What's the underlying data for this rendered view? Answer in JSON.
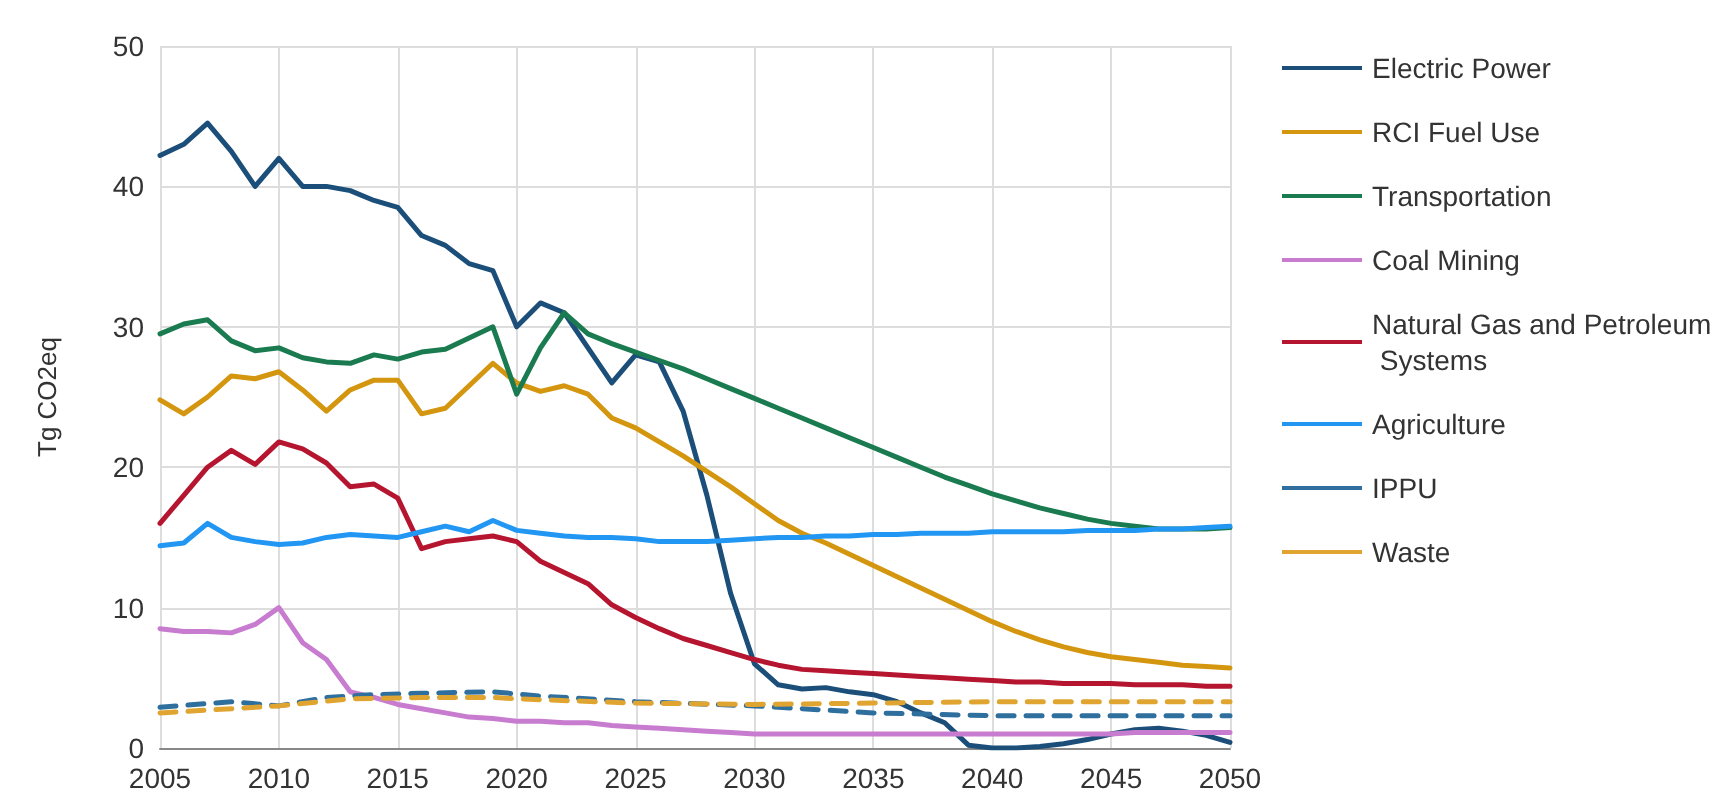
{
  "chart_data": {
    "type": "line",
    "ylabel": "Tg CO2eq",
    "xlim": [
      2005,
      2050
    ],
    "xticks": [
      2005,
      2010,
      2015,
      2020,
      2025,
      2030,
      2035,
      2040,
      2045,
      2050
    ],
    "ylim": [
      0,
      50
    ],
    "yticks": [
      0,
      10,
      20,
      30,
      40,
      50
    ],
    "grid": true,
    "legend": "right",
    "marker": "none",
    "x": [
      2005,
      2006,
      2007,
      2008,
      2009,
      2010,
      2011,
      2012,
      2013,
      2014,
      2015,
      2016,
      2017,
      2018,
      2019,
      2020,
      2021,
      2022,
      2023,
      2024,
      2025,
      2026,
      2027,
      2028,
      2029,
      2030,
      2031,
      2032,
      2033,
      2034,
      2035,
      2036,
      2037,
      2038,
      2039,
      2040,
      2041,
      2042,
      2043,
      2044,
      2045,
      2046,
      2047,
      2048,
      2049,
      2050
    ],
    "series": [
      {
        "name": "Electric Power",
        "color": "#1b4f7a",
        "line_style": "solid",
        "values": [
          42.2,
          43,
          44.5,
          42.5,
          40,
          42,
          40,
          40,
          39.7,
          39,
          38.5,
          36.5,
          35.8,
          34.5,
          34,
          30,
          31.7,
          31,
          28.5,
          26,
          28,
          27.5,
          24,
          18,
          11,
          6,
          4.5,
          4.2,
          4.3,
          4,
          3.8,
          3.3,
          2.5,
          1.8,
          0.2,
          0,
          0,
          0.1,
          0.3,
          0.6,
          1,
          1.3,
          1.4,
          1.2,
          0.9,
          0.4
        ]
      },
      {
        "name": "RCI Fuel Use",
        "color": "#d4960f",
        "line_style": "solid",
        "values": [
          24.8,
          23.8,
          25,
          26.5,
          26.3,
          26.8,
          25.5,
          24,
          25.5,
          26.2,
          26.2,
          23.8,
          24.2,
          25.8,
          27.4,
          26,
          25.4,
          25.8,
          25.2,
          23.5,
          22.8,
          21.8,
          20.8,
          19.7,
          18.6,
          17.4,
          16.2,
          15.3,
          14.6,
          13.8,
          13,
          12.2,
          11.4,
          10.6,
          9.8,
          9,
          8.3,
          7.7,
          7.2,
          6.8,
          6.5,
          6.3,
          6.1,
          5.9,
          5.8,
          5.7
        ]
      },
      {
        "name": "Transportation",
        "color": "#1a7a50",
        "line_style": "solid",
        "values": [
          29.5,
          30.2,
          30.5,
          29,
          28.3,
          28.5,
          27.8,
          27.5,
          27.4,
          28,
          27.7,
          28.2,
          28.4,
          29.2,
          30,
          25.2,
          28.5,
          31,
          29.5,
          28.8,
          28.2,
          27.6,
          27,
          26.3,
          25.6,
          24.9,
          24.2,
          23.5,
          22.8,
          22.1,
          21.4,
          20.7,
          20,
          19.3,
          18.7,
          18.1,
          17.6,
          17.1,
          16.7,
          16.3,
          16,
          15.8,
          15.6,
          15.6,
          15.6,
          15.7
        ]
      },
      {
        "name": "Coal Mining",
        "color": "#c87cd0",
        "line_style": "solid",
        "values": [
          8.5,
          8.3,
          8.3,
          8.2,
          8.8,
          10,
          7.5,
          6.3,
          4,
          3.6,
          3.1,
          2.8,
          2.5,
          2.2,
          2.1,
          1.9,
          1.9,
          1.8,
          1.8,
          1.6,
          1.5,
          1.4,
          1.3,
          1.2,
          1.1,
          1,
          1,
          1,
          1,
          1,
          1,
          1,
          1,
          1,
          1,
          1,
          1,
          1,
          1,
          1,
          1,
          1.1,
          1.1,
          1.1,
          1.1,
          1.1
        ]
      },
      {
        "name": "Natural Gas and Petroleum Systems",
        "color": "#b5152f",
        "line_style": "solid",
        "values": [
          16,
          18,
          20,
          21.2,
          20.2,
          21.8,
          21.3,
          20.3,
          18.6,
          18.8,
          17.8,
          14.2,
          14.7,
          14.9,
          15.1,
          14.7,
          13.3,
          12.5,
          11.7,
          10.2,
          9.3,
          8.5,
          7.8,
          7.3,
          6.8,
          6.3,
          5.9,
          5.6,
          5.5,
          5.4,
          5.3,
          5.2,
          5.1,
          5,
          4.9,
          4.8,
          4.7,
          4.7,
          4.6,
          4.6,
          4.6,
          4.5,
          4.5,
          4.5,
          4.4,
          4.4
        ]
      },
      {
        "name": "Agriculture",
        "color": "#2196f3",
        "line_style": "solid",
        "values": [
          14.4,
          14.6,
          16,
          15,
          14.7,
          14.5,
          14.6,
          15,
          15.2,
          15.1,
          15,
          15.4,
          15.8,
          15.4,
          16.2,
          15.5,
          15.3,
          15.1,
          15,
          15,
          14.9,
          14.7,
          14.7,
          14.7,
          14.8,
          14.9,
          15,
          15,
          15.1,
          15.1,
          15.2,
          15.2,
          15.3,
          15.3,
          15.3,
          15.4,
          15.4,
          15.4,
          15.4,
          15.5,
          15.5,
          15.5,
          15.6,
          15.6,
          15.7,
          15.8
        ]
      },
      {
        "name": "IPPU",
        "color": "#2e6f9e",
        "line_style": "dashed",
        "x": [
          2005,
          2008,
          2010,
          2012,
          2014,
          2016,
          2019,
          2021,
          2025,
          2030,
          2035,
          2040,
          2045,
          2050
        ],
        "values": [
          2.9,
          3.3,
          3,
          3.6,
          3.8,
          3.9,
          4,
          3.7,
          3.3,
          3,
          2.5,
          2.3,
          2.3,
          2.3
        ]
      },
      {
        "name": "Waste",
        "color": "#e0a530",
        "line_style": "dashed",
        "x": [
          2005,
          2010,
          2013,
          2016,
          2019,
          2020,
          2025,
          2030,
          2035,
          2040,
          2045,
          2050
        ],
        "values": [
          2.5,
          3,
          3.5,
          3.6,
          3.6,
          3.5,
          3.2,
          3.1,
          3.2,
          3.3,
          3.3,
          3.3
        ]
      }
    ]
  }
}
